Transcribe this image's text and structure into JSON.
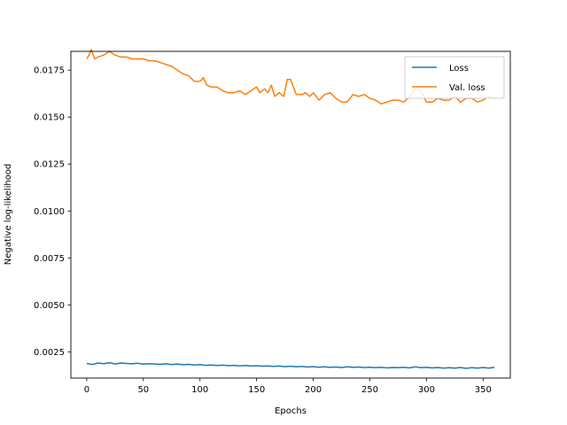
{
  "chart_data": {
    "type": "line",
    "title": "",
    "xlabel": "Epochs",
    "ylabel": "Negative log-likelihood",
    "xlim": [
      -14,
      374
    ],
    "ylim": [
      0.0011,
      0.0185
    ],
    "xticks": [
      0,
      50,
      100,
      150,
      200,
      250,
      300,
      350
    ],
    "yticks": [
      0.0025,
      0.005,
      0.0075,
      0.01,
      0.0125,
      0.015,
      0.0175
    ],
    "ytick_labels": [
      "0.0025",
      "0.0050",
      "0.0075",
      "0.0100",
      "0.0125",
      "0.0150",
      "0.0175"
    ],
    "grid": false,
    "legend_position": "top-right",
    "series": [
      {
        "name": "Loss",
        "color": "#1f77b4",
        "points": [
          [
            0,
            0.00188
          ],
          [
            5,
            0.00182
          ],
          [
            10,
            0.0019
          ],
          [
            15,
            0.00187
          ],
          [
            20,
            0.00192
          ],
          [
            25,
            0.00185
          ],
          [
            30,
            0.0019
          ],
          [
            35,
            0.00188
          ],
          [
            40,
            0.00186
          ],
          [
            45,
            0.00189
          ],
          [
            50,
            0.00184
          ],
          [
            55,
            0.00187
          ],
          [
            60,
            0.00185
          ],
          [
            65,
            0.00183
          ],
          [
            70,
            0.00186
          ],
          [
            75,
            0.00182
          ],
          [
            80,
            0.00185
          ],
          [
            85,
            0.00181
          ],
          [
            90,
            0.00183
          ],
          [
            95,
            0.0018
          ],
          [
            100,
            0.00182
          ],
          [
            105,
            0.00178
          ],
          [
            110,
            0.0018
          ],
          [
            115,
            0.00177
          ],
          [
            120,
            0.00179
          ],
          [
            125,
            0.00176
          ],
          [
            130,
            0.00178
          ],
          [
            135,
            0.00175
          ],
          [
            140,
            0.00177
          ],
          [
            145,
            0.00174
          ],
          [
            150,
            0.00176
          ],
          [
            155,
            0.00173
          ],
          [
            160,
            0.00175
          ],
          [
            165,
            0.00172
          ],
          [
            170,
            0.00174
          ],
          [
            175,
            0.00171
          ],
          [
            180,
            0.00173
          ],
          [
            185,
            0.0017
          ],
          [
            190,
            0.00172
          ],
          [
            195,
            0.00169
          ],
          [
            200,
            0.00171
          ],
          [
            205,
            0.00168
          ],
          [
            210,
            0.0017
          ],
          [
            215,
            0.00167
          ],
          [
            220,
            0.00169
          ],
          [
            225,
            0.00166
          ],
          [
            230,
            0.0017
          ],
          [
            235,
            0.00167
          ],
          [
            240,
            0.00169
          ],
          [
            245,
            0.00166
          ],
          [
            250,
            0.00168
          ],
          [
            255,
            0.00165
          ],
          [
            260,
            0.00167
          ],
          [
            265,
            0.00164
          ],
          [
            270,
            0.00166
          ],
          [
            275,
            0.00165
          ],
          [
            280,
            0.00167
          ],
          [
            285,
            0.00164
          ],
          [
            290,
            0.0017
          ],
          [
            295,
            0.00165
          ],
          [
            300,
            0.00167
          ],
          [
            305,
            0.00164
          ],
          [
            310,
            0.00166
          ],
          [
            315,
            0.00163
          ],
          [
            320,
            0.00165
          ],
          [
            325,
            0.00163
          ],
          [
            330,
            0.00166
          ],
          [
            335,
            0.00162
          ],
          [
            340,
            0.00165
          ],
          [
            345,
            0.00163
          ],
          [
            350,
            0.00166
          ],
          [
            355,
            0.00163
          ],
          [
            360,
            0.00167
          ]
        ]
      },
      {
        "name": "Val. loss",
        "color": "#ff7f0e",
        "points": [
          [
            0,
            0.0181
          ],
          [
            2,
            0.0183
          ],
          [
            4,
            0.0186
          ],
          [
            7,
            0.0181
          ],
          [
            10,
            0.0182
          ],
          [
            15,
            0.0183
          ],
          [
            20,
            0.0185
          ],
          [
            25,
            0.0183
          ],
          [
            30,
            0.0182
          ],
          [
            35,
            0.0182
          ],
          [
            40,
            0.0181
          ],
          [
            45,
            0.0181
          ],
          [
            50,
            0.0181
          ],
          [
            55,
            0.018
          ],
          [
            60,
            0.018
          ],
          [
            65,
            0.0179
          ],
          [
            70,
            0.0178
          ],
          [
            75,
            0.0177
          ],
          [
            80,
            0.0175
          ],
          [
            85,
            0.0173
          ],
          [
            90,
            0.0172
          ],
          [
            95,
            0.0169
          ],
          [
            100,
            0.0169
          ],
          [
            103,
            0.0171
          ],
          [
            106,
            0.0167
          ],
          [
            110,
            0.0166
          ],
          [
            115,
            0.0166
          ],
          [
            120,
            0.0164
          ],
          [
            125,
            0.0163
          ],
          [
            130,
            0.0163
          ],
          [
            135,
            0.0164
          ],
          [
            140,
            0.0162
          ],
          [
            145,
            0.0164
          ],
          [
            150,
            0.0166
          ],
          [
            153,
            0.0163
          ],
          [
            157,
            0.0165
          ],
          [
            160,
            0.0163
          ],
          [
            163,
            0.0167
          ],
          [
            166,
            0.0161
          ],
          [
            170,
            0.0163
          ],
          [
            174,
            0.0161
          ],
          [
            177,
            0.017
          ],
          [
            180,
            0.017
          ],
          [
            185,
            0.0162
          ],
          [
            190,
            0.0162
          ],
          [
            193,
            0.0163
          ],
          [
            197,
            0.0161
          ],
          [
            200,
            0.0163
          ],
          [
            205,
            0.0159
          ],
          [
            210,
            0.0162
          ],
          [
            215,
            0.0163
          ],
          [
            220,
            0.016
          ],
          [
            225,
            0.0158
          ],
          [
            230,
            0.0158
          ],
          [
            235,
            0.0162
          ],
          [
            240,
            0.0161
          ],
          [
            245,
            0.0162
          ],
          [
            250,
            0.016
          ],
          [
            255,
            0.0159
          ],
          [
            260,
            0.0157
          ],
          [
            265,
            0.0158
          ],
          [
            270,
            0.0159
          ],
          [
            275,
            0.0159
          ],
          [
            280,
            0.0158
          ],
          [
            285,
            0.0161
          ],
          [
            290,
            0.0165
          ],
          [
            295,
            0.0164
          ],
          [
            300,
            0.0158
          ],
          [
            305,
            0.0158
          ],
          [
            310,
            0.016
          ],
          [
            315,
            0.0159
          ],
          [
            320,
            0.0159
          ],
          [
            325,
            0.0161
          ],
          [
            330,
            0.0158
          ],
          [
            335,
            0.016
          ],
          [
            340,
            0.016
          ],
          [
            345,
            0.0158
          ],
          [
            350,
            0.0159
          ],
          [
            355,
            0.0161
          ],
          [
            360,
            0.016
          ]
        ]
      }
    ]
  }
}
